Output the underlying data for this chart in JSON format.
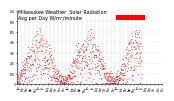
{
  "title": "Milwaukee Weather  Solar Radiation\nAvg per Day W/m²/minute",
  "title_fontsize": 3.5,
  "bg_color": "#ffffff",
  "plot_bg": "#ffffff",
  "dot_color_red": "#ff0000",
  "dot_color_black": "#333333",
  "grid_color": "#bbbbbb",
  "ylim": [
    0,
    700
  ],
  "ytick_vals": [
    0,
    100,
    200,
    300,
    400,
    500,
    600,
    700
  ],
  "legend_box_color": "#ff0000",
  "month_line_color": "#999999",
  "seed": 17
}
